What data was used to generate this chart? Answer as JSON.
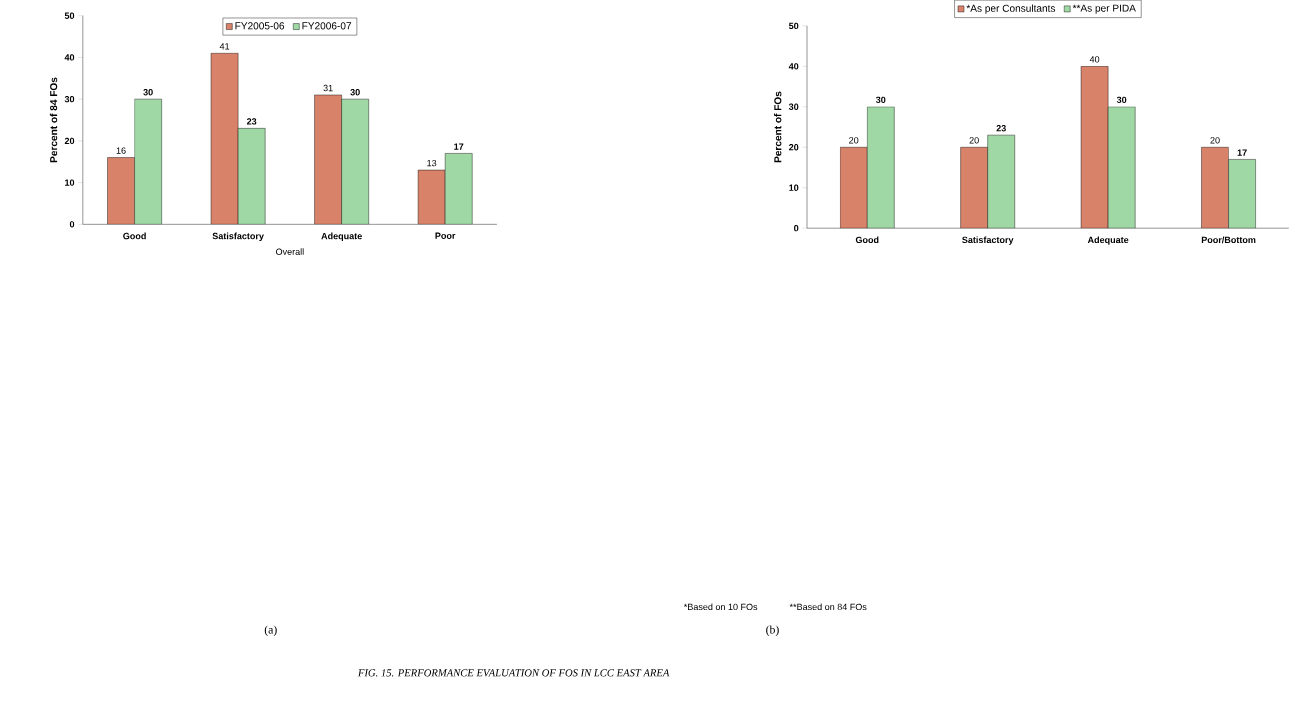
{
  "chart_data": [
    {
      "type": "bar",
      "xlabel": "Overall",
      "ylabel": "Percent of 84 FOs",
      "categories": [
        "Good",
        "Satisfactory",
        "Adequate",
        "Poor"
      ],
      "series": [
        {
          "name": "FY2005-06",
          "color": "#d9826a",
          "values": [
            16,
            41,
            31,
            13
          ]
        },
        {
          "name": "FY2006-07",
          "color": "#9fd8a4",
          "values": [
            30,
            23,
            30,
            17
          ]
        }
      ],
      "ylim": [
        0,
        50
      ],
      "yticks": [
        0,
        10,
        20,
        30,
        40,
        50
      ],
      "legend": "top",
      "data_labels": true,
      "annotations": [
        "(a)"
      ]
    },
    {
      "type": "bar",
      "ylabel": "Percent of FOs",
      "categories": [
        "Good",
        "Satisfactory",
        "Adequate",
        "Poor/Bottom"
      ],
      "series": [
        {
          "name": "*As per Consultants",
          "color": "#d9826a",
          "values": [
            20,
            20,
            40,
            20
          ]
        },
        {
          "name": "**As per PIDA",
          "color": "#9fd8a4",
          "values": [
            30,
            23,
            30,
            17
          ]
        }
      ],
      "ylim": [
        0,
        50
      ],
      "yticks": [
        0,
        10,
        20,
        30,
        40,
        50
      ],
      "legend": "top",
      "data_labels": true,
      "annotations": [
        "*Based on 10 FOs",
        "**Based on 84 FOs",
        "(b)",
        "FIG. 15. PERFORMANCE EVALUATION OF FOS IN LCC EAST AREA"
      ]
    }
  ]
}
